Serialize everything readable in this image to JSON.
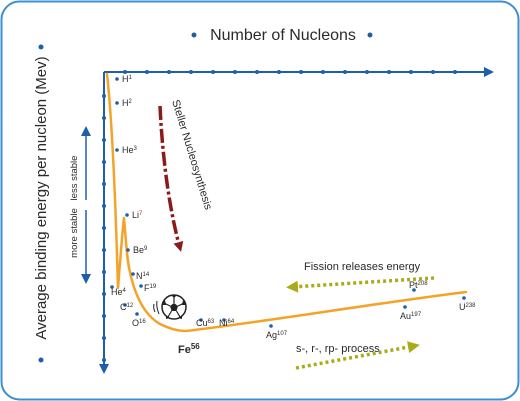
{
  "title": "Number of Nucleons",
  "ylabel": "Average binding energy per nucleon (Mev)",
  "stability": {
    "less": "less stable",
    "more": "more stable"
  },
  "nuclides": [
    {
      "sym": "H",
      "mass": "1"
    },
    {
      "sym": "H",
      "mass": "2"
    },
    {
      "sym": "He",
      "mass": "3"
    },
    {
      "sym": "Li",
      "mass": "7"
    },
    {
      "sym": "Be",
      "mass": "9"
    },
    {
      "sym": "He",
      "mass": "4"
    },
    {
      "sym": "N",
      "mass": "14"
    },
    {
      "sym": "F",
      "mass": "19"
    },
    {
      "sym": "C",
      "mass": "12"
    },
    {
      "sym": "O",
      "mass": "16"
    },
    {
      "sym": "Fe",
      "mass": "56"
    },
    {
      "sym": "Cu",
      "mass": "63"
    },
    {
      "sym": "Ni",
      "mass": "64"
    },
    {
      "sym": "Ag",
      "mass": "107"
    },
    {
      "sym": "Pt",
      "mass": "208"
    },
    {
      "sym": "Au",
      "mass": "197"
    },
    {
      "sym": "U",
      "mass": "238"
    }
  ],
  "annotations": {
    "stellar": "Steller Nucleosynthesis",
    "fission": "Fission releases energy",
    "process": "s-, r-, rp- process"
  },
  "colors": {
    "frame": "#3d8fd1",
    "axis": "#1f5fa8",
    "curve": "#f2a42a",
    "text": "#2a2a2a",
    "stellar_arrow": "#8b1a1a",
    "green_arrow": "#a8ad17"
  },
  "icons": {
    "iron_marker": "soccer-ball-icon"
  }
}
